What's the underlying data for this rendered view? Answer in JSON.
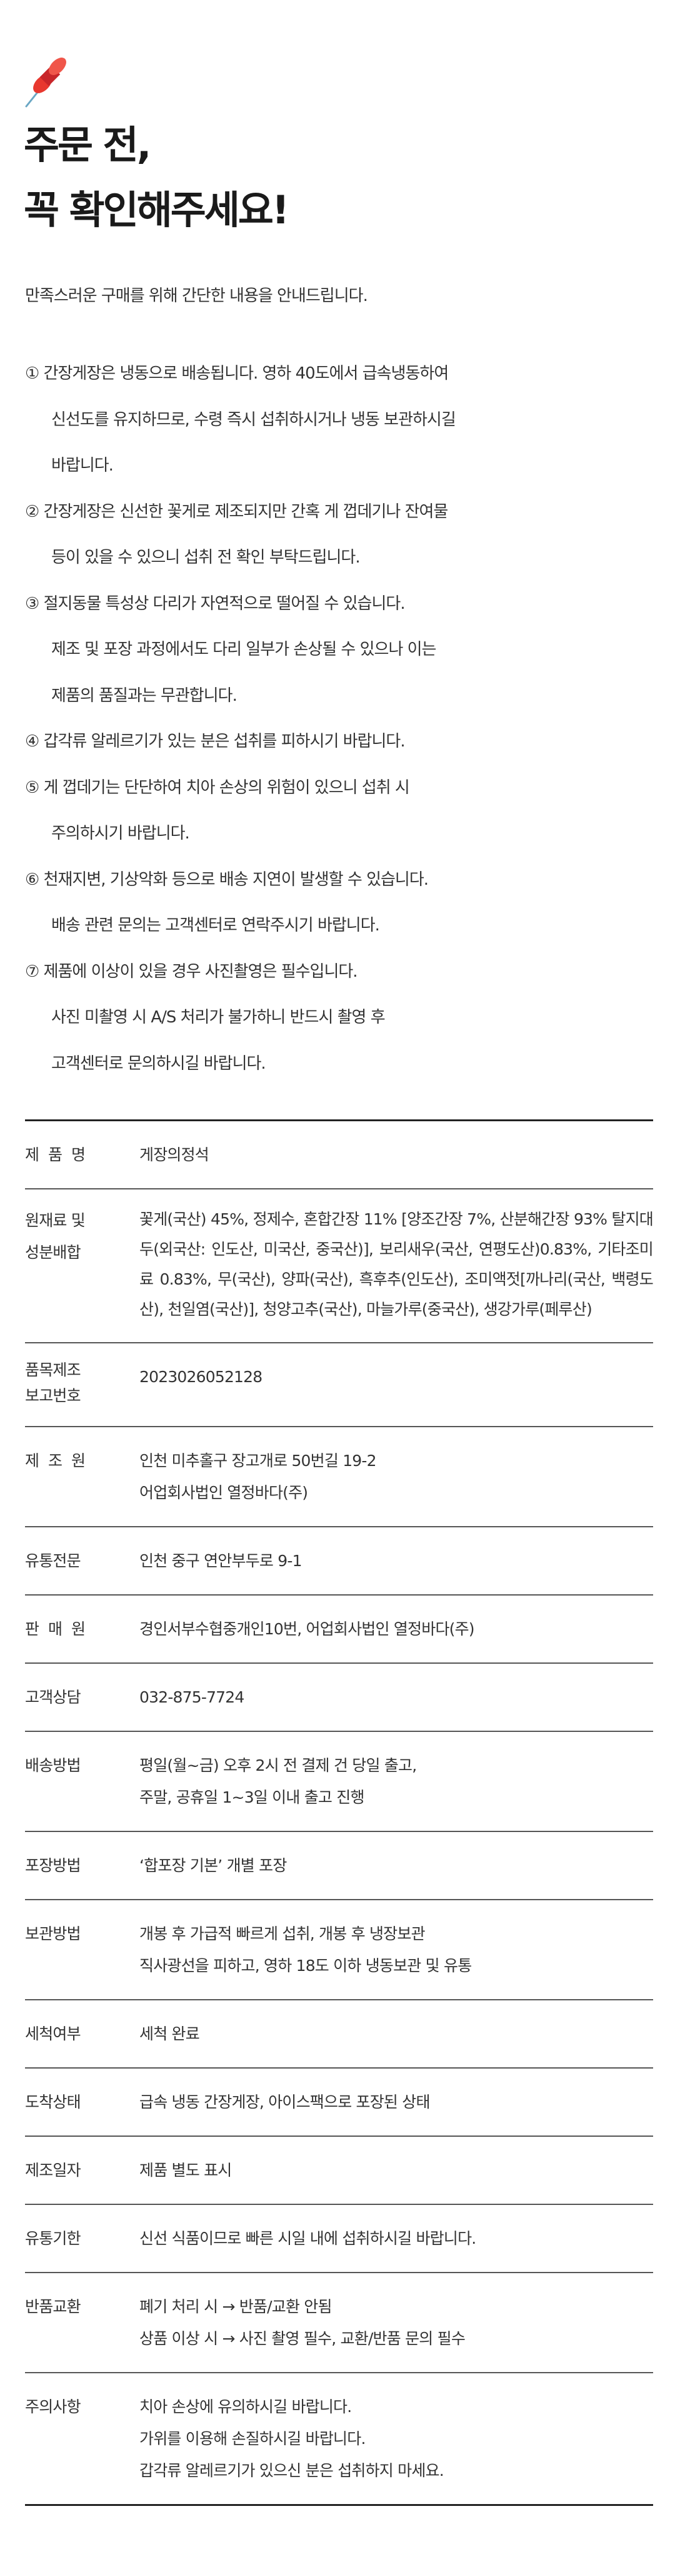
{
  "header": {
    "icon": "pushpin-icon",
    "title_lines": [
      "주문 전,",
      "꼭 확인해주세요!"
    ],
    "intro": "만족스러운 구매를 위해 간단한 내용을 안내드립니다."
  },
  "notices": [
    {
      "lines": [
        "① 간장게장은 냉동으로 배송됩니다. 영하 40도에서 급속냉동하여",
        "신선도를 유지하므로, 수령 즉시 섭취하시거나 냉동 보관하시길",
        "바랍니다."
      ]
    },
    {
      "lines": [
        "② 간장게장은 신선한 꽃게로 제조되지만 간혹 게 껍데기나 잔여물",
        "등이 있을 수 있으니 섭취 전 확인 부탁드립니다."
      ]
    },
    {
      "lines": [
        "③ 절지동물 특성상 다리가 자연적으로 떨어질 수 있습니다.",
        "제조 및 포장 과정에서도 다리 일부가 손상될 수 있으나 이는",
        "제품의 품질과는 무관합니다."
      ]
    },
    {
      "lines": [
        "④ 갑각류 알레르기가 있는 분은 섭취를 피하시기 바랍니다."
      ]
    },
    {
      "lines": [
        "⑤ 게 껍데기는 단단하여 치아 손상의 위험이 있으니 섭취 시",
        "주의하시기 바랍니다."
      ]
    },
    {
      "lines": [
        "⑥ 천재지변, 기상악화 등으로 배송 지연이 발생할 수 있습니다.",
        "배송 관련 문의는 고객센터로 연락주시기 바랍니다."
      ]
    },
    {
      "lines": [
        "⑦ 제품에 이상이 있을 경우 사진촬영은 필수입니다.",
        "사진 미촬영 시 A/S 처리가 불가하니 반드시 촬영 후",
        "고객센터로 문의하시길 바랍니다."
      ]
    }
  ],
  "info_table": [
    {
      "label": "제품명",
      "value": [
        "게장의정석"
      ]
    },
    {
      "label": "원재료 및 성분배합",
      "label_lines": [
        "원재료 및",
        "성분배합"
      ],
      "value": [
        "꽃게(국산) 45%, 정제수, 혼합간장 11% [양조간장 7%, 산분해간장 93% 탈지대두(외국산: 인도산, 미국산, 중국산)], 보리새우(국산, 연평도산)0.83%, 기타조미료 0.83%, 무(국산), 양파(국산), 흑후추(인도산), 조미액젓[까나리(국산, 백령도산), 천일염(국산)], 청양고추(국산), 마늘가루(중국산), 생강가루(페루산)"
      ]
    },
    {
      "label": "품목제조 보고번호",
      "label_lines": [
        "품목제조",
        "보고번호"
      ],
      "value": [
        "2023026052128"
      ]
    },
    {
      "label": "제조원",
      "value": [
        "인천 미추홀구 장고개로 50번길 19-2",
        "어업회사법인 열정바다(주)"
      ]
    },
    {
      "label": "유통전문",
      "value": [
        "인천 중구 연안부두로 9-1"
      ]
    },
    {
      "label": "판매원",
      "value": [
        "경인서부수협중개인10번, 어업회사법인 열정바다(주)"
      ]
    },
    {
      "label": "고객상담",
      "value": [
        "032-875-7724"
      ]
    },
    {
      "label": "배송방법",
      "value": [
        "평일(월~금) 오후 2시 전 결제 건 당일 출고,",
        "주말, 공휴일 1~3일 이내 출고 진행"
      ]
    },
    {
      "label": "포장방법",
      "value": [
        "‘합포장 기본’ 개별 포장"
      ]
    },
    {
      "label": "보관방법",
      "value": [
        "개봉 후 가급적 빠르게 섭취, 개봉 후 냉장보관",
        "직사광선을 피하고, 영하 18도 이하 냉동보관 및 유통"
      ]
    },
    {
      "label": "세척여부",
      "value": [
        "세척 완료"
      ]
    },
    {
      "label": "도착상태",
      "value": [
        "급속 냉동 간장게장, 아이스팩으로 포장된 상태"
      ]
    },
    {
      "label": "제조일자",
      "value": [
        "제품 별도 표시"
      ]
    },
    {
      "label": "유통기한",
      "value": [
        "신선 식품이므로 빠른 시일 내에 섭취하시길 바랍니다."
      ]
    },
    {
      "label": "반품교환",
      "value": [
        "폐기 처리 시 → 반품/교환 안됨",
        "상품 이상 시 → 사진 촬영 필수, 교환/반품 문의 필수"
      ]
    },
    {
      "label": "주의사항",
      "value": [
        "치아 손상에 유의하시길 바랍니다.",
        "가위를 이용해 손질하시길 바랍니다.",
        "갑각류 알레르기가 있으신 분은 섭취하지 마세요."
      ]
    }
  ]
}
